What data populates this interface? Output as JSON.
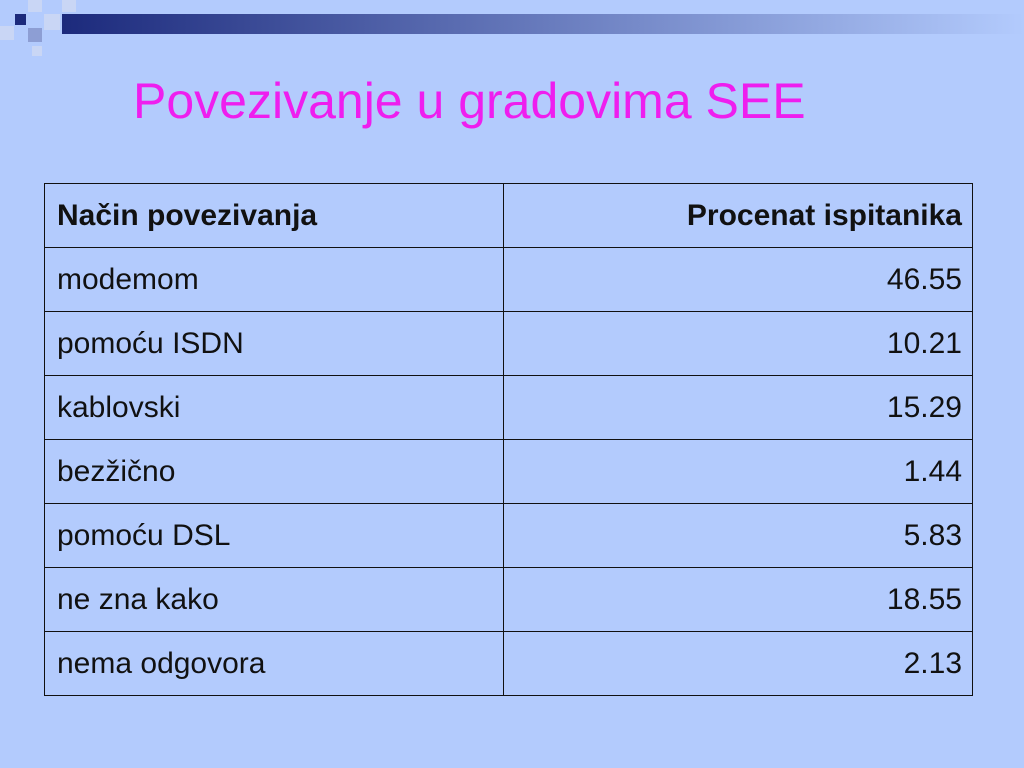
{
  "title": "Povezivanje u gradovima SEE",
  "table": {
    "header": [
      "Način povezivanja",
      "Procenat ispitanika"
    ],
    "rows": [
      [
        "modemom",
        46.55
      ],
      [
        "pomoću ISDN",
        10.21
      ],
      [
        "kablovski",
        15.29
      ],
      [
        "bezžično",
        1.44
      ],
      [
        "pomoću DSL",
        5.83
      ],
      [
        "ne zna kako",
        18.55
      ],
      [
        "nema odgovora",
        2.13
      ]
    ]
  }
}
